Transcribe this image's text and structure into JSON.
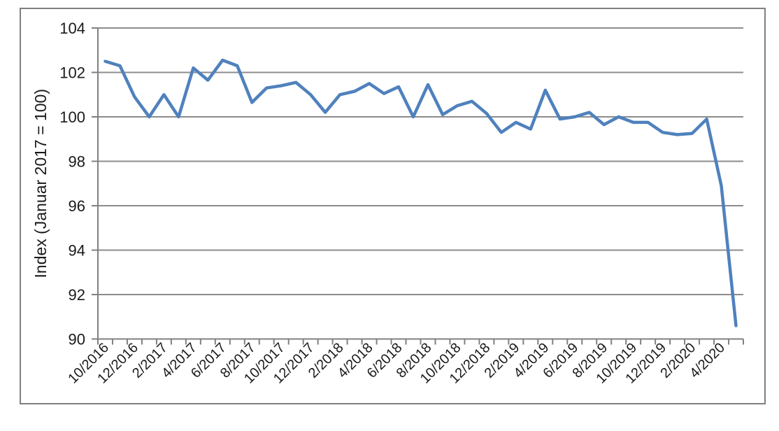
{
  "chart": {
    "background_color": "#FFFFFF",
    "border_color": "#7F7F7F",
    "line_color": "#4F81BD",
    "grid_color": "#8C8C8C",
    "axis_color": "#808080",
    "text_color": "#1A1A1A"
  },
  "chart_data": {
    "type": "line",
    "title": "",
    "xlabel": "",
    "ylabel": "Index (Januar 2017 = 100)",
    "ylim": [
      90,
      104
    ],
    "ytick_step": 2,
    "ytick_labels": [
      "104",
      "102",
      "100",
      "98",
      "96",
      "94",
      "92",
      "90"
    ],
    "grid": true,
    "legend": false,
    "x_label_every": 2,
    "x": [
      "10/2016",
      "11/2016",
      "12/2016",
      "1/2017",
      "2/2017",
      "3/2017",
      "4/2017",
      "5/2017",
      "6/2017",
      "7/2017",
      "8/2017",
      "9/2017",
      "10/2017",
      "11/2017",
      "12/2017",
      "1/2018",
      "2/2018",
      "3/2018",
      "4/2018",
      "5/2018",
      "6/2018",
      "7/2018",
      "8/2018",
      "9/2018",
      "10/2018",
      "11/2018",
      "12/2018",
      "1/2019",
      "2/2019",
      "3/2019",
      "4/2019",
      "5/2019",
      "6/2019",
      "7/2019",
      "8/2019",
      "9/2019",
      "10/2019",
      "11/2019",
      "12/2019",
      "1/2020",
      "2/2020",
      "3/2020",
      "4/2020",
      "5/2020"
    ],
    "x_tick_labels": [
      "10/2016",
      "12/2016",
      "2/2017",
      "4/2017",
      "6/2017",
      "8/2017",
      "10/2017",
      "12/2017",
      "2/2018",
      "4/2018",
      "6/2018",
      "8/2018",
      "10/2018",
      "12/2018",
      "2/2019",
      "4/2019",
      "6/2019",
      "8/2019",
      "10/2019",
      "12/2019",
      "2/2020",
      "4/2020"
    ],
    "values": [
      102.5,
      102.3,
      100.9,
      100.0,
      101.0,
      100.0,
      102.2,
      101.65,
      102.55,
      102.3,
      100.65,
      101.3,
      101.4,
      101.55,
      101.0,
      100.2,
      101.0,
      101.15,
      101.5,
      101.05,
      101.35,
      100.0,
      101.45,
      100.1,
      100.5,
      100.7,
      100.15,
      99.3,
      99.75,
      99.45,
      101.2,
      99.9,
      100.0,
      100.2,
      99.65,
      100.0,
      99.75,
      99.75,
      99.3,
      99.2,
      99.25,
      99.9,
      96.9,
      90.6
    ]
  }
}
